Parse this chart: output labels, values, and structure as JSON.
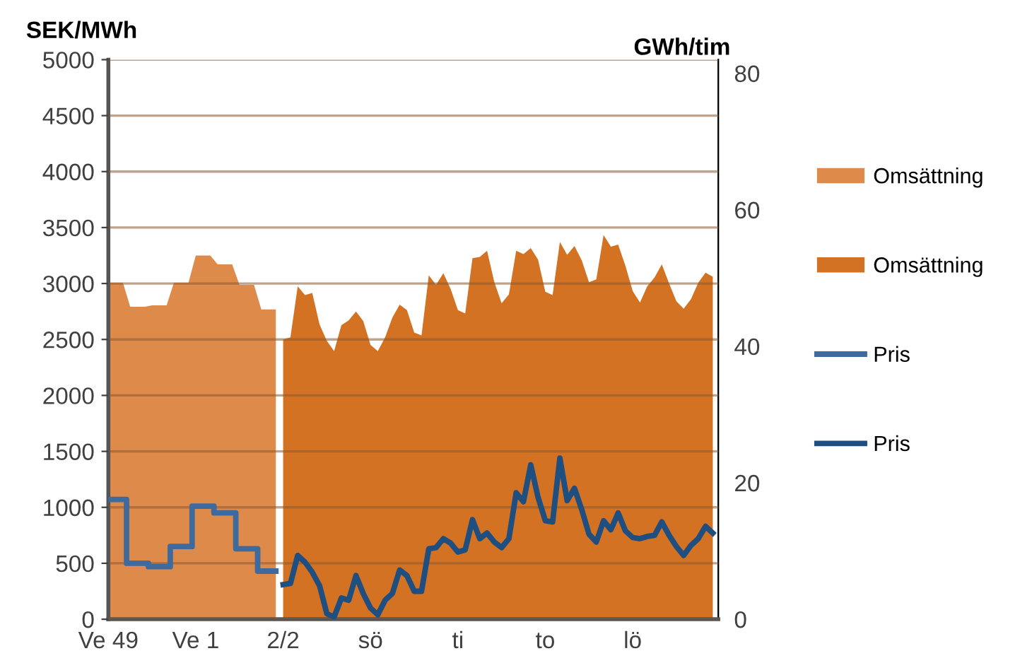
{
  "chart_data": {
    "type": "area",
    "ylabel": "SEK/MWh",
    "y2label": "GWh/tim",
    "categories": [
      "Ve 49",
      null,
      null,
      null,
      null,
      null,
      null,
      null,
      null,
      null,
      null,
      null,
      "Ve 1",
      null,
      null,
      null,
      null,
      null,
      null,
      null,
      null,
      null,
      null,
      null,
      "2/2",
      null,
      null,
      null,
      null,
      null,
      null,
      null,
      null,
      null,
      null,
      null,
      "sö",
      null,
      null,
      null,
      null,
      null,
      null,
      null,
      null,
      null,
      null,
      null,
      "ti",
      null,
      null,
      null,
      null,
      null,
      null,
      null,
      null,
      null,
      null,
      null,
      "to",
      null,
      null,
      null,
      null,
      null,
      null,
      null,
      null,
      null,
      null,
      null,
      "lö",
      null,
      null,
      null,
      null,
      null,
      null,
      null,
      null,
      null,
      null,
      null
    ],
    "ylim": [
      0,
      5000
    ],
    "yticks": [
      0,
      500,
      1000,
      1500,
      2000,
      2500,
      3000,
      3500,
      4000,
      4500,
      5000
    ],
    "y2lim": [
      0,
      82
    ],
    "y2ticks": [
      0,
      20,
      40,
      60,
      80
    ],
    "grid": "y",
    "legend": "right",
    "series": [
      {
        "name": "Omsättning",
        "axis": "y2",
        "color": "#dd8a4a",
        "values": [
          49.3,
          49.3,
          49.3,
          45.8,
          45.8,
          45.8,
          46.0,
          46.0,
          46.0,
          49.3,
          49.3,
          49.3,
          53.3,
          53.3,
          53.3,
          52.0,
          52.0,
          52.0,
          49.0,
          49.0,
          49.0,
          45.4,
          45.4,
          45.4,
          null,
          null,
          null,
          null,
          null,
          null,
          null,
          null,
          null,
          null,
          null,
          null,
          null,
          null,
          null,
          null,
          null,
          null,
          null,
          null,
          null,
          null,
          null,
          null,
          null,
          null,
          null,
          null,
          null,
          null,
          null,
          null,
          null,
          null,
          null,
          null,
          null,
          null,
          null,
          null,
          null,
          null,
          null,
          null,
          null,
          null,
          null,
          null,
          null,
          null,
          null,
          null,
          null,
          null,
          null,
          null,
          null,
          null,
          null,
          null
        ]
      },
      {
        "name": "Omsättning",
        "axis": "y2",
        "color": "#d37222",
        "values": [
          null,
          null,
          null,
          null,
          null,
          null,
          null,
          null,
          null,
          null,
          null,
          null,
          null,
          null,
          null,
          null,
          null,
          null,
          null,
          null,
          null,
          null,
          null,
          null,
          41.0,
          41.3,
          48.8,
          47.5,
          47.8,
          43.2,
          40.8,
          39.3,
          43.1,
          43.8,
          45.1,
          43.7,
          40.2,
          39.3,
          41.3,
          44.2,
          46.1,
          45.3,
          42.0,
          41.6,
          50.4,
          49.0,
          50.7,
          48.4,
          45.3,
          44.8,
          52.9,
          53.1,
          54.0,
          49.4,
          46.3,
          47.6,
          54.0,
          53.5,
          54.4,
          52.7,
          48.0,
          47.5,
          55.3,
          53.4,
          54.7,
          52.6,
          49.4,
          49.8,
          56.3,
          54.6,
          54.9,
          51.8,
          48.1,
          46.4,
          48.8,
          50.1,
          52.0,
          49.2,
          46.6,
          45.5,
          46.9,
          49.3,
          50.8,
          50.2
        ]
      },
      {
        "name": "Pris",
        "type": "step",
        "color": "#3f6a9e",
        "values": [
          1070,
          1070,
          1070,
          500,
          500,
          500,
          470,
          470,
          470,
          650,
          650,
          650,
          1010,
          1010,
          1010,
          950,
          950,
          950,
          630,
          630,
          630,
          430,
          430,
          430,
          null,
          null,
          null,
          null,
          null,
          null,
          null,
          null,
          null,
          null,
          null,
          null,
          null,
          null,
          null,
          null,
          null,
          null,
          null,
          null,
          null,
          null,
          null,
          null,
          null,
          null,
          null,
          null,
          null,
          null,
          null,
          null,
          null,
          null,
          null,
          null,
          null,
          null,
          null,
          null,
          null,
          null,
          null,
          null,
          null,
          null,
          null,
          null,
          null,
          null,
          null,
          null,
          null,
          null,
          null,
          null,
          null,
          null,
          null,
          null
        ]
      },
      {
        "name": "Pris",
        "type": "line",
        "color": "#1f4e80",
        "values": [
          null,
          null,
          null,
          null,
          null,
          null,
          null,
          null,
          null,
          null,
          null,
          null,
          null,
          null,
          null,
          null,
          null,
          null,
          null,
          null,
          null,
          null,
          null,
          null,
          310,
          320,
          570,
          510,
          420,
          300,
          50,
          20,
          190,
          170,
          390,
          230,
          100,
          40,
          170,
          230,
          440,
          390,
          250,
          250,
          630,
          640,
          720,
          680,
          600,
          620,
          890,
          720,
          770,
          690,
          640,
          720,
          1130,
          1050,
          1380,
          1090,
          880,
          870,
          1440,
          1060,
          1170,
          980,
          760,
          690,
          880,
          800,
          950,
          790,
          730,
          720,
          740,
          750,
          870,
          750,
          650,
          570,
          660,
          720,
          830,
          770
        ]
      }
    ]
  }
}
